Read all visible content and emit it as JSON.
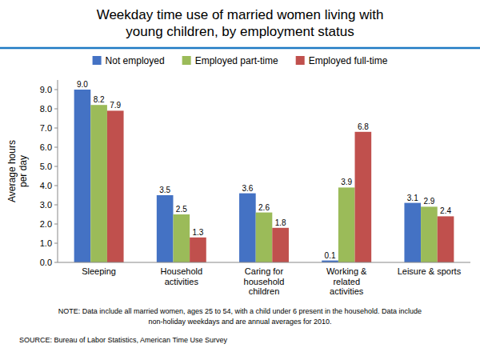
{
  "chart_data": {
    "type": "bar",
    "title": "Weekday time use of married women living with\nyoung children, by employment status",
    "categories": [
      "Sleeping",
      "Household\nactivities",
      "Caring for\nhousehold\nchildren",
      "Working &\nrelated\nactivities",
      "Leisure & sports"
    ],
    "series": [
      {
        "name": "Not employed",
        "color": "#4472C4",
        "values": [
          9.0,
          3.5,
          3.6,
          0.1,
          3.1
        ],
        "value_labels": [
          "9.0",
          "3.5",
          "3.6",
          "0.1",
          "3.1"
        ]
      },
      {
        "name": "Employed part-time",
        "color": "#9BBB59",
        "values": [
          8.2,
          2.5,
          2.6,
          3.9,
          2.9
        ],
        "value_labels": [
          "8.2",
          "2.5",
          "2.6",
          "3.9",
          "2.9"
        ]
      },
      {
        "name": "Employed full-time",
        "color": "#C0504D",
        "values": [
          7.9,
          1.3,
          1.8,
          6.8,
          2.4
        ],
        "value_labels": [
          "7.9",
          "1.3",
          "1.8",
          "6.8",
          "2.4"
        ]
      }
    ],
    "y_label": "Average hours\nper day",
    "ylim": [
      0,
      9.5
    ],
    "yticks": [
      {
        "value": 0,
        "label": "0.0"
      },
      {
        "value": 1,
        "label": "1.0"
      },
      {
        "value": 2,
        "label": "2.0"
      },
      {
        "value": 3,
        "label": "3.0"
      },
      {
        "value": 4,
        "label": "4.0"
      },
      {
        "value": 5,
        "label": "5.0"
      },
      {
        "value": 6,
        "label": "6.0"
      },
      {
        "value": 7,
        "label": "7.0"
      },
      {
        "value": 8,
        "label": "8.0"
      },
      {
        "value": 9,
        "label": "9.0"
      }
    ],
    "annotations": [
      "NOTE: Data include all married women, ages 25 to 54, with a child under 6 present in the household. Data include",
      "non-holiday weekdays and are annual averages for 2010.",
      "SOURCE: Bureau of Labor Statistics, American Time Use Survey"
    ],
    "data_labels": true,
    "grid": false,
    "legend": "top"
  }
}
